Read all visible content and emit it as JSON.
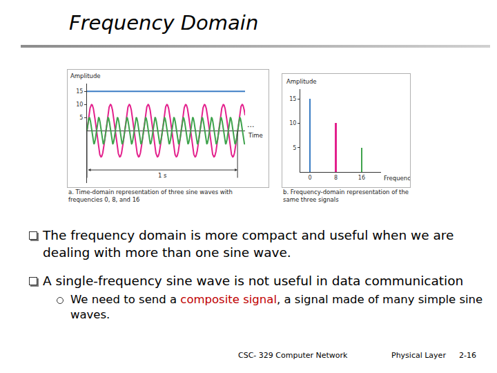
{
  "title": "Frequency Domain",
  "chart_data": [
    {
      "type": "line",
      "caption": "a. Time-domain representation of three sine waves with frequencies 0, 8, and 16",
      "x_label": "Time",
      "y_label": "Amplitude",
      "xlim": [
        0,
        1.05
      ],
      "xticks": [],
      "ylim": [
        -20,
        18
      ],
      "yticks": [
        5,
        10,
        15
      ],
      "tick_labels": "y",
      "series": [
        {
          "frequency": 0,
          "amplitude": 15,
          "color": "#3b7dc4"
        },
        {
          "frequency": 8,
          "amplitude": 10,
          "color": "#e3208c"
        },
        {
          "frequency": 16,
          "amplitude": 5,
          "color": "#3fa34d"
        }
      ],
      "annotations": [
        {
          "text": "1 s",
          "from": 0,
          "to": 1
        },
        {
          "text": "..."
        }
      ]
    },
    {
      "type": "bar",
      "caption": "b. Frequency-domain representation of the same three signals",
      "x_label": "Frequency",
      "y_label": "Amplitude",
      "x": [
        0,
        8,
        16
      ],
      "values": [
        15,
        10,
        5
      ],
      "colors": [
        "#3b7dc4",
        "#e3208c",
        "#3fa34d"
      ],
      "xlim": [
        -3,
        22
      ],
      "xticks": [
        0,
        8,
        16
      ],
      "ylim": [
        0,
        17
      ],
      "yticks": [
        5,
        10,
        15
      ]
    }
  ],
  "bullets": [
    {
      "text": "The frequency domain is more compact and useful when we are dealing with more than one sine wave."
    },
    {
      "text": "A single-frequency sine wave is not useful in data communication",
      "sub": [
        {
          "parts": [
            {
              "text": "We need to send a "
            },
            {
              "text": "composite signal",
              "color": "#c00000"
            },
            {
              "text": ", a signal made of many simple sine waves."
            }
          ]
        }
      ]
    }
  ],
  "footer": {
    "course": "CSC- 329  Computer Network",
    "section": "Physical Layer",
    "page": "2-16"
  }
}
